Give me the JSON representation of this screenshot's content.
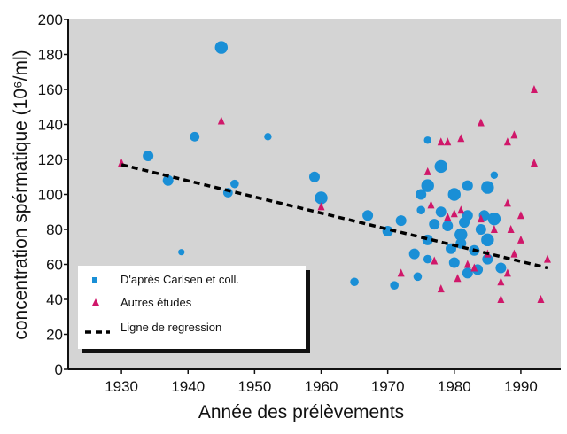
{
  "chart_data": {
    "type": "scatter",
    "xlabel": "Année des prélèvements",
    "ylabel": "concentration spérmatique (10⁶/ml)",
    "xlim": [
      1922,
      1996
    ],
    "ylim": [
      0,
      200
    ],
    "xticks": [
      1930,
      1940,
      1950,
      1960,
      1970,
      1980,
      1990
    ],
    "yticks": [
      0,
      20,
      40,
      60,
      80,
      100,
      120,
      140,
      160,
      180,
      200
    ],
    "grid": false,
    "legend_position": "bottom-left",
    "colors": {
      "background": "#d4d4d4",
      "carlsen": "#1a8fd6",
      "autres": "#d0176a",
      "regression": "#000000"
    },
    "series": [
      {
        "name": "D'après Carlsen et coll.",
        "marker": "circle",
        "points": [
          {
            "x": 1934,
            "y": 122,
            "s": 1.0
          },
          {
            "x": 1937,
            "y": 108,
            "s": 1.0
          },
          {
            "x": 1939,
            "y": 67,
            "s": 0.6
          },
          {
            "x": 1941,
            "y": 133,
            "s": 0.9
          },
          {
            "x": 1945,
            "y": 184,
            "s": 1.2
          },
          {
            "x": 1946,
            "y": 101,
            "s": 0.9
          },
          {
            "x": 1947,
            "y": 106,
            "s": 0.8
          },
          {
            "x": 1952,
            "y": 133,
            "s": 0.7
          },
          {
            "x": 1959,
            "y": 110,
            "s": 1.0
          },
          {
            "x": 1960,
            "y": 98,
            "s": 1.2
          },
          {
            "x": 1965,
            "y": 50,
            "s": 0.8
          },
          {
            "x": 1967,
            "y": 88,
            "s": 1.0
          },
          {
            "x": 1970,
            "y": 79,
            "s": 1.0
          },
          {
            "x": 1971,
            "y": 48,
            "s": 0.8
          },
          {
            "x": 1972,
            "y": 85,
            "s": 1.0
          },
          {
            "x": 1974,
            "y": 66,
            "s": 1.0
          },
          {
            "x": 1974.5,
            "y": 53,
            "s": 0.8
          },
          {
            "x": 1975,
            "y": 100,
            "s": 1.0
          },
          {
            "x": 1975,
            "y": 91,
            "s": 0.8
          },
          {
            "x": 1976,
            "y": 131,
            "s": 0.7
          },
          {
            "x": 1976,
            "y": 105,
            "s": 1.2
          },
          {
            "x": 1976,
            "y": 74,
            "s": 1.0
          },
          {
            "x": 1976,
            "y": 63,
            "s": 0.8
          },
          {
            "x": 1977,
            "y": 83,
            "s": 1.0
          },
          {
            "x": 1978,
            "y": 116,
            "s": 1.2
          },
          {
            "x": 1978,
            "y": 90,
            "s": 1.0
          },
          {
            "x": 1979,
            "y": 82,
            "s": 1.0
          },
          {
            "x": 1979.5,
            "y": 69,
            "s": 1.0
          },
          {
            "x": 1980,
            "y": 100,
            "s": 1.2
          },
          {
            "x": 1980,
            "y": 61,
            "s": 1.0
          },
          {
            "x": 1981,
            "y": 77,
            "s": 1.2
          },
          {
            "x": 1981,
            "y": 72,
            "s": 1.0
          },
          {
            "x": 1981.5,
            "y": 84,
            "s": 1.0
          },
          {
            "x": 1982,
            "y": 105,
            "s": 1.0
          },
          {
            "x": 1982,
            "y": 88,
            "s": 1.0
          },
          {
            "x": 1982,
            "y": 55,
            "s": 1.0
          },
          {
            "x": 1983,
            "y": 68,
            "s": 1.0
          },
          {
            "x": 1983.5,
            "y": 57,
            "s": 1.0
          },
          {
            "x": 1984,
            "y": 80,
            "s": 1.0
          },
          {
            "x": 1984.5,
            "y": 88,
            "s": 1.0
          },
          {
            "x": 1985,
            "y": 104,
            "s": 1.2
          },
          {
            "x": 1985,
            "y": 74,
            "s": 1.2
          },
          {
            "x": 1985,
            "y": 63,
            "s": 1.0
          },
          {
            "x": 1986,
            "y": 111,
            "s": 0.7
          },
          {
            "x": 1986,
            "y": 86,
            "s": 1.2
          },
          {
            "x": 1987,
            "y": 58,
            "s": 1.0
          }
        ]
      },
      {
        "name": "Autres études",
        "marker": "triangle",
        "points": [
          {
            "x": 1930,
            "y": 118
          },
          {
            "x": 1945,
            "y": 142
          },
          {
            "x": 1960,
            "y": 93
          },
          {
            "x": 1972,
            "y": 55
          },
          {
            "x": 1976,
            "y": 113
          },
          {
            "x": 1976.5,
            "y": 94
          },
          {
            "x": 1977,
            "y": 62
          },
          {
            "x": 1978,
            "y": 130
          },
          {
            "x": 1978,
            "y": 46
          },
          {
            "x": 1979,
            "y": 130
          },
          {
            "x": 1979,
            "y": 87
          },
          {
            "x": 1980,
            "y": 89
          },
          {
            "x": 1980.5,
            "y": 52
          },
          {
            "x": 1981,
            "y": 132
          },
          {
            "x": 1981,
            "y": 91
          },
          {
            "x": 1982,
            "y": 60
          },
          {
            "x": 1983,
            "y": 58
          },
          {
            "x": 1984,
            "y": 141
          },
          {
            "x": 1984,
            "y": 86
          },
          {
            "x": 1985,
            "y": 66
          },
          {
            "x": 1986,
            "y": 80
          },
          {
            "x": 1987,
            "y": 50
          },
          {
            "x": 1987,
            "y": 40
          },
          {
            "x": 1988,
            "y": 130
          },
          {
            "x": 1988,
            "y": 95
          },
          {
            "x": 1988.5,
            "y": 80
          },
          {
            "x": 1989,
            "y": 134
          },
          {
            "x": 1989,
            "y": 66
          },
          {
            "x": 1990,
            "y": 88
          },
          {
            "x": 1990,
            "y": 74
          },
          {
            "x": 1992,
            "y": 160
          },
          {
            "x": 1992,
            "y": 118
          },
          {
            "x": 1993,
            "y": 40
          },
          {
            "x": 1994,
            "y": 63
          },
          {
            "x": 1988,
            "y": 55
          }
        ]
      },
      {
        "name": "Ligne de regression",
        "marker": "dashed-line",
        "points": [
          {
            "x": 1930,
            "y": 117
          },
          {
            "x": 1994,
            "y": 58
          }
        ]
      }
    ]
  }
}
